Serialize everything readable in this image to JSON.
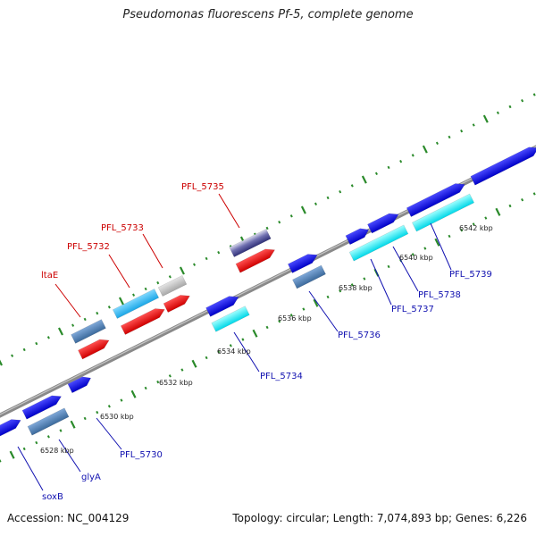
{
  "title": "Pseudomonas fluorescens Pf-5, complete genome",
  "footer": {
    "accession": "Accession: NC_004129",
    "summary": "Topology: circular; Length: 7,074,893 bp; Genes: 6,226"
  },
  "colors": {
    "backbone": "#8a8a8a",
    "tick": "#2a8a2a",
    "label_red": "#cc0000",
    "label_blue": "#1010b0"
  },
  "kbp_labels": [
    "6528 kbp",
    "6530 kbp",
    "6532 kbp",
    "6534 kbp",
    "6536 kbp",
    "6538 kbp",
    "6540 kbp",
    "6542 kbp"
  ],
  "gene_labels_top": [
    "ltaE",
    "PFL_5732",
    "PFL_5733",
    "PFL_5735"
  ],
  "gene_labels_bottom": [
    "soxB",
    "glyA",
    "PFL_5730",
    "PFL_5734",
    "PFL_5736",
    "PFL_5737",
    "PFL_5738",
    "PFL_5739"
  ]
}
